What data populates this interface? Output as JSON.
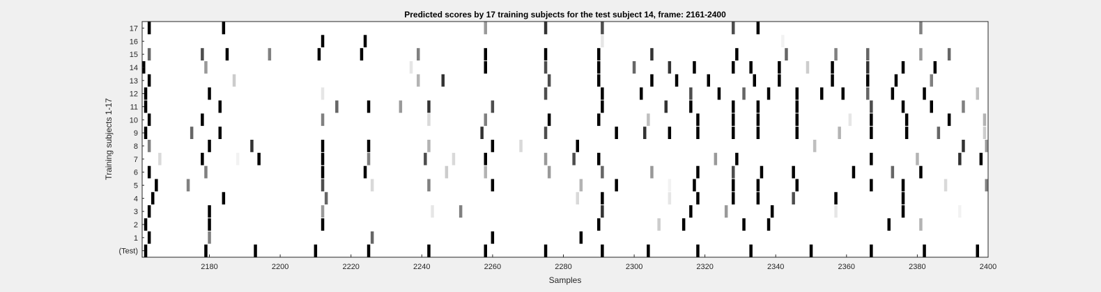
{
  "chart_data": {
    "type": "heatmap",
    "title": "Predicted scores by 17 training subjects for the test subject 14, frame: 2161-2400",
    "xlabel": "Samples",
    "ylabel": "Training subjects 1-17",
    "xlim": [
      2161,
      2400
    ],
    "x_ticks": [
      2180,
      2200,
      2220,
      2240,
      2260,
      2280,
      2300,
      2320,
      2340,
      2360,
      2380,
      2400
    ],
    "y_tick_labels": [
      "(Test)",
      "1",
      "2",
      "3",
      "4",
      "5",
      "6",
      "7",
      "8",
      "9",
      "10",
      "11",
      "12",
      "13",
      "14",
      "15",
      "16",
      "17"
    ],
    "colormap": "gray (white = 0, black = 1)",
    "grid": false,
    "rows": [
      {
        "label": "(Test)",
        "marks": [
          [
            2162,
            1
          ],
          [
            2179,
            1
          ],
          [
            2193,
            1
          ],
          [
            2210,
            1
          ],
          [
            2225,
            1
          ],
          [
            2242,
            1
          ],
          [
            2258,
            1
          ],
          [
            2275,
            1
          ],
          [
            2291,
            1
          ],
          [
            2304,
            1
          ],
          [
            2318,
            1
          ],
          [
            2333,
            1
          ],
          [
            2350,
            1
          ],
          [
            2367,
            1
          ],
          [
            2382,
            1
          ],
          [
            2397,
            1
          ]
        ]
      },
      {
        "label": "1",
        "marks": [
          [
            2163,
            1
          ],
          [
            2180,
            0.5
          ],
          [
            2226,
            0.6
          ],
          [
            2260,
            1
          ],
          [
            2285,
            1
          ]
        ]
      },
      {
        "label": "2",
        "marks": [
          [
            2162,
            1
          ],
          [
            2180,
            1
          ],
          [
            2212,
            1
          ],
          [
            2290,
            1
          ],
          [
            2307,
            0.2
          ],
          [
            2314,
            1
          ],
          [
            2331,
            1
          ],
          [
            2338,
            1
          ],
          [
            2372,
            1
          ],
          [
            2381,
            0.3
          ]
        ]
      },
      {
        "label": "3",
        "marks": [
          [
            2163,
            1
          ],
          [
            2180,
            1
          ],
          [
            2212,
            0.4
          ],
          [
            2243,
            0.1
          ],
          [
            2251,
            0.5
          ],
          [
            2291,
            0.8
          ],
          [
            2316,
            1
          ],
          [
            2326,
            0.4
          ],
          [
            2339,
            1
          ],
          [
            2357,
            0.1
          ],
          [
            2376,
            1
          ],
          [
            2392,
            0.05
          ]
        ]
      },
      {
        "label": "4",
        "marks": [
          [
            2164,
            1
          ],
          [
            2184,
            1
          ],
          [
            2213,
            0.6
          ],
          [
            2284,
            0.15
          ],
          [
            2291,
            1
          ],
          [
            2310,
            0.1
          ],
          [
            2318,
            1
          ],
          [
            2328,
            1
          ],
          [
            2335,
            1
          ],
          [
            2345,
            0.7
          ],
          [
            2357,
            1
          ],
          [
            2376,
            1
          ]
        ]
      },
      {
        "label": "5",
        "marks": [
          [
            2165,
            1
          ],
          [
            2174,
            0.5
          ],
          [
            2212,
            0.7
          ],
          [
            2226,
            0.15
          ],
          [
            2242,
            0.5
          ],
          [
            2260,
            1
          ],
          [
            2285,
            0.3
          ],
          [
            2295,
            1
          ],
          [
            2310,
            0.05
          ],
          [
            2317,
            1
          ],
          [
            2328,
            1
          ],
          [
            2335,
            1
          ],
          [
            2346,
            1
          ],
          [
            2367,
            1
          ],
          [
            2376,
            1
          ],
          [
            2388,
            0.15
          ],
          [
            2400,
            0.5
          ]
        ]
      },
      {
        "label": "6",
        "marks": [
          [
            2163,
            1
          ],
          [
            2179,
            0.5
          ],
          [
            2212,
            1
          ],
          [
            2224,
            1
          ],
          [
            2247,
            0.2
          ],
          [
            2258,
            0.3
          ],
          [
            2276,
            0.4
          ],
          [
            2291,
            0.6
          ],
          [
            2305,
            0.4
          ],
          [
            2318,
            1
          ],
          [
            2328,
            0.7
          ],
          [
            2336,
            1
          ],
          [
            2345,
            1
          ],
          [
            2362,
            1
          ],
          [
            2373,
            0.6
          ],
          [
            2381,
            1
          ]
        ]
      },
      {
        "label": "7",
        "marks": [
          [
            2166,
            0.15
          ],
          [
            2178,
            1
          ],
          [
            2188,
            0.05
          ],
          [
            2194,
            1
          ],
          [
            2212,
            1
          ],
          [
            2225,
            0.5
          ],
          [
            2241,
            0.7
          ],
          [
            2249,
            0.15
          ],
          [
            2258,
            1
          ],
          [
            2275,
            0.4
          ],
          [
            2283,
            0.7
          ],
          [
            2290,
            1
          ],
          [
            2323,
            0.4
          ],
          [
            2329,
            1
          ],
          [
            2367,
            1
          ],
          [
            2380,
            0.3
          ],
          [
            2392,
            0.8
          ],
          [
            2398,
            1
          ]
        ]
      },
      {
        "label": "8",
        "marks": [
          [
            2163,
            0.5
          ],
          [
            2180,
            1
          ],
          [
            2192,
            0.8
          ],
          [
            2212,
            1
          ],
          [
            2225,
            1
          ],
          [
            2242,
            0.3
          ],
          [
            2260,
            1
          ],
          [
            2268,
            0.15
          ],
          [
            2284,
            1
          ],
          [
            2351,
            0.25
          ],
          [
            2393,
            0.8
          ],
          [
            2400,
            0.4
          ]
        ]
      },
      {
        "label": "9",
        "marks": [
          [
            2162,
            1
          ],
          [
            2175,
            0.6
          ],
          [
            2183,
            1
          ],
          [
            2257,
            0.8
          ],
          [
            2275,
            0.7
          ],
          [
            2295,
            1
          ],
          [
            2303,
            0.8
          ],
          [
            2310,
            1
          ],
          [
            2318,
            1
          ],
          [
            2328,
            1
          ],
          [
            2335,
            1
          ],
          [
            2346,
            1
          ],
          [
            2358,
            0.3
          ],
          [
            2367,
            1
          ],
          [
            2377,
            1
          ],
          [
            2386,
            0.6
          ],
          [
            2399,
            0.2
          ]
        ]
      },
      {
        "label": "10",
        "marks": [
          [
            2163,
            1
          ],
          [
            2178,
            1
          ],
          [
            2212,
            0.5
          ],
          [
            2242,
            0.15
          ],
          [
            2258,
            0.5
          ],
          [
            2276,
            1
          ],
          [
            2290,
            1
          ],
          [
            2304,
            0.25
          ],
          [
            2318,
            1
          ],
          [
            2328,
            1
          ],
          [
            2335,
            1
          ],
          [
            2346,
            1
          ],
          [
            2361,
            0.1
          ],
          [
            2367,
            1
          ],
          [
            2377,
            1
          ],
          [
            2389,
            1
          ],
          [
            2399,
            0.3
          ]
        ]
      },
      {
        "label": "11",
        "marks": [
          [
            2162,
            1
          ],
          [
            2183,
            1
          ],
          [
            2216,
            0.6
          ],
          [
            2225,
            1
          ],
          [
            2234,
            0.4
          ],
          [
            2242,
            0.8
          ],
          [
            2260,
            0.7
          ],
          [
            2291,
            1
          ],
          [
            2309,
            0.8
          ],
          [
            2316,
            1
          ],
          [
            2328,
            1
          ],
          [
            2335,
            1
          ],
          [
            2346,
            1
          ],
          [
            2367,
            0.7
          ],
          [
            2376,
            1
          ],
          [
            2384,
            1
          ],
          [
            2393,
            0.5
          ]
        ]
      },
      {
        "label": "12",
        "marks": [
          [
            2162,
            1
          ],
          [
            2180,
            1
          ],
          [
            2212,
            0.1
          ],
          [
            2275,
            0.7
          ],
          [
            2291,
            1
          ],
          [
            2302,
            1
          ],
          [
            2316,
            0.7
          ],
          [
            2324,
            1
          ],
          [
            2331,
            0.6
          ],
          [
            2338,
            1
          ],
          [
            2346,
            1
          ],
          [
            2353,
            1
          ],
          [
            2359,
            1
          ],
          [
            2366,
            0.6
          ],
          [
            2373,
            1
          ],
          [
            2382,
            1
          ],
          [
            2397,
            0.25
          ]
        ]
      },
      {
        "label": "13",
        "marks": [
          [
            2163,
            1
          ],
          [
            2187,
            0.2
          ],
          [
            2239,
            0.3
          ],
          [
            2246,
            0.8
          ],
          [
            2276,
            0.7
          ],
          [
            2290,
            1
          ],
          [
            2305,
            1
          ],
          [
            2312,
            1
          ],
          [
            2321,
            1
          ],
          [
            2334,
            1
          ],
          [
            2341,
            1
          ],
          [
            2356,
            1
          ],
          [
            2366,
            1
          ],
          [
            2374,
            1
          ],
          [
            2384,
            0.5
          ]
        ]
      },
      {
        "label": "14",
        "marks": [
          [
            2161,
            1
          ],
          [
            2179,
            0.4
          ],
          [
            2237,
            0.1
          ],
          [
            2258,
            1
          ],
          [
            2275,
            0.7
          ],
          [
            2290,
            1
          ],
          [
            2300,
            0.6
          ],
          [
            2310,
            0.8
          ],
          [
            2317,
            1
          ],
          [
            2328,
            1
          ],
          [
            2333,
            1
          ],
          [
            2341,
            1
          ],
          [
            2349,
            0.2
          ],
          [
            2356,
            1
          ],
          [
            2366,
            0.8
          ],
          [
            2376,
            1
          ],
          [
            2385,
            1
          ]
        ]
      },
      {
        "label": "15",
        "marks": [
          [
            2163,
            0.6
          ],
          [
            2178,
            0.7
          ],
          [
            2185,
            1
          ],
          [
            2197,
            0.5
          ],
          [
            2211,
            1
          ],
          [
            2223,
            1
          ],
          [
            2239,
            0.5
          ],
          [
            2258,
            1
          ],
          [
            2275,
            1
          ],
          [
            2290,
            1
          ],
          [
            2305,
            0.8
          ],
          [
            2329,
            1
          ],
          [
            2343,
            0.6
          ],
          [
            2357,
            0.5
          ],
          [
            2366,
            0.6
          ],
          [
            2381,
            0.4
          ],
          [
            2389,
            0.6
          ]
        ]
      },
      {
        "label": "16",
        "marks": [
          [
            2212,
            1
          ],
          [
            2224,
            1
          ],
          [
            2291,
            0.1
          ],
          [
            2342,
            0.05
          ]
        ]
      },
      {
        "label": "17",
        "marks": [
          [
            2163,
            1
          ],
          [
            2184,
            1
          ],
          [
            2258,
            0.4
          ],
          [
            2275,
            0.8
          ],
          [
            2291,
            0.7
          ],
          [
            2328,
            0.7
          ],
          [
            2335,
            1
          ],
          [
            2381,
            0.5
          ]
        ]
      }
    ]
  }
}
